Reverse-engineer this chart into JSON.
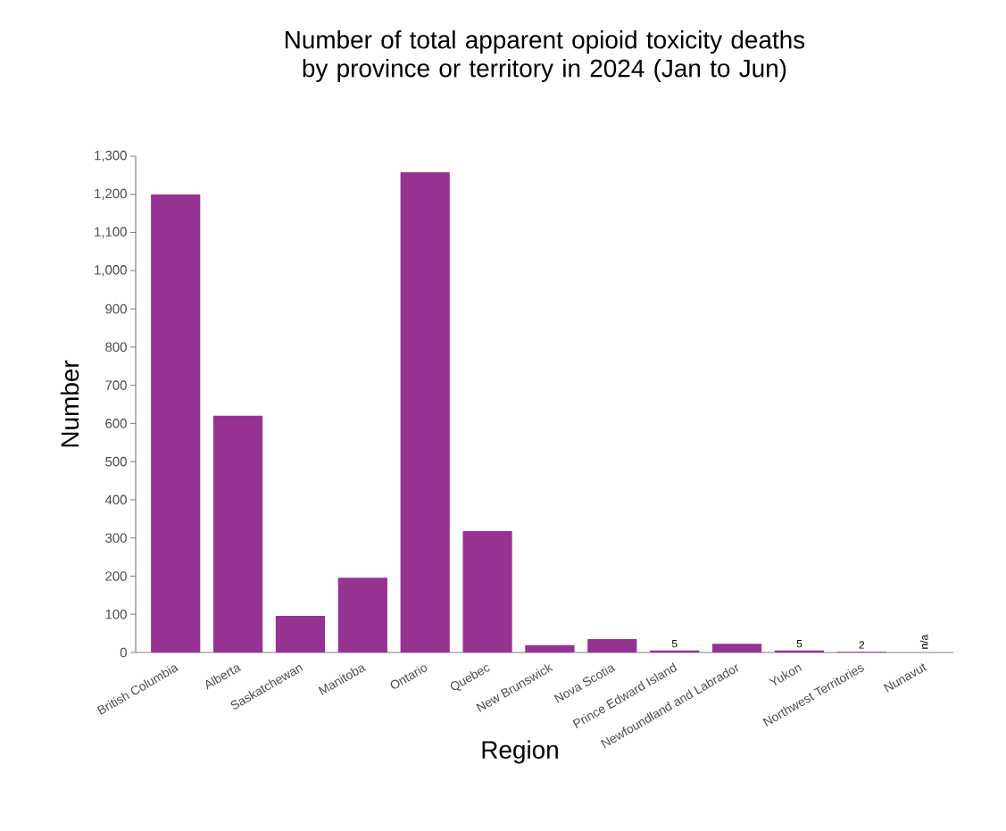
{
  "chart_data": {
    "type": "bar",
    "title": "Number of total apparent opioid toxicity deaths by province or territory in 2024 (Jan to Jun)",
    "xlabel": "Region",
    "ylabel": "Number",
    "categories": [
      "British Columbia",
      "Alberta",
      "Saskatchewan",
      "Manitoba",
      "Ontario",
      "Quebec",
      "New Brunswick",
      "Nova Scotia",
      "Prince Edward Island",
      "Newfoundland and Labrador",
      "Yukon",
      "Northwest Territories",
      "Nunavut"
    ],
    "values": [
      1200,
      620,
      96,
      196,
      1258,
      318,
      19,
      35,
      5,
      23,
      5,
      2,
      null
    ],
    "value_labels": [
      null,
      null,
      null,
      null,
      null,
      null,
      null,
      null,
      "5",
      null,
      "5",
      "2",
      "n/a"
    ],
    "color": "#963392",
    "ylim": [
      0,
      1300
    ],
    "yticks": [
      0,
      100,
      200,
      300,
      400,
      500,
      600,
      700,
      800,
      900,
      {
        "value": 1000,
        "label": "1,000"
      },
      {
        "value": 1100,
        "label": "1,100"
      },
      {
        "value": 1200,
        "label": "1,200"
      },
      {
        "value": 1300,
        "label": "1,300"
      }
    ],
    "grid": false
  }
}
